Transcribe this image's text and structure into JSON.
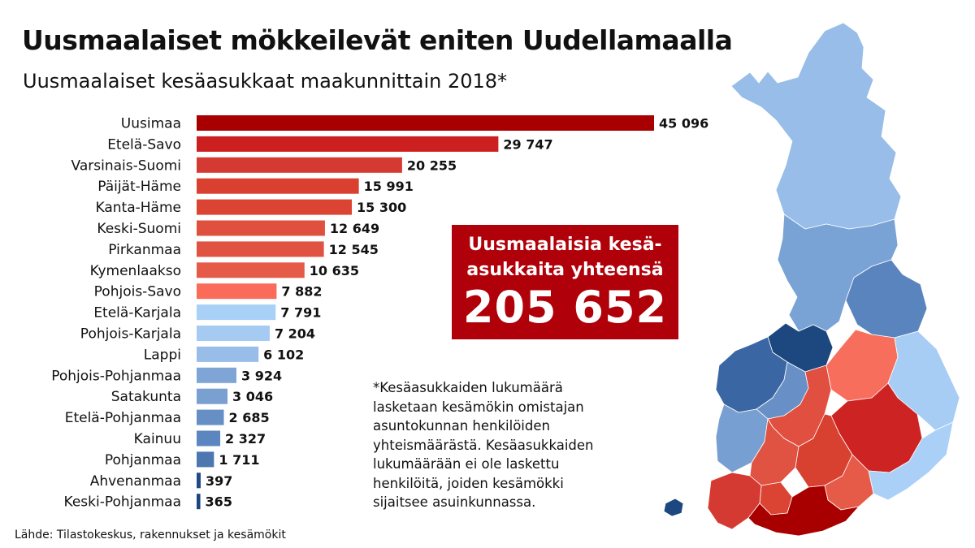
{
  "header": {
    "title": "Uusmaalaiset mökkeilevät eniten Uudellamaalla",
    "subtitle": "Uusmaalaiset kesäasukkaat maakunnittain 2018*"
  },
  "total_box": {
    "label_line1": "Uusmaalaisia kesä-",
    "label_line2": "asukkaita yhteensä",
    "value": "205 652"
  },
  "footnote": {
    "lines": [
      "*Kesäasukkaiden lukumäärä",
      "lasketaan kesämökin omistajan",
      "asuntokunnan henkilöiden",
      "yhteismäärästä. Kesäasukkaiden",
      "lukumäärään ei ole laskettu",
      "henkilöitä, joiden kesämökki",
      "sijaitsee asuinkunnassa."
    ]
  },
  "source": "Lähde: Tilastokeskus, rakennukset ja kesämökit",
  "chart_data": {
    "type": "bar",
    "orientation": "horizontal",
    "title": "Uusmaalaiset mökkeilevät eniten Uudellamaalla",
    "subtitle": "Uusmaalaiset kesäasukkaat maakunnittain 2018*",
    "xlabel": "",
    "ylabel": "",
    "xlim": [
      0,
      45096
    ],
    "grid": false,
    "legend": "none",
    "categories": [
      "Uusimaa",
      "Etelä-Savo",
      "Varsinais-Suomi",
      "Päijät-Häme",
      "Kanta-Häme",
      "Keski-Suomi",
      "Pirkanmaa",
      "Kymenlaakso",
      "Pohjois-Savo",
      "Etelä-Karjala",
      "Pohjois-Karjala",
      "Lappi",
      "Pohjois-Pohjanmaa",
      "Satakunta",
      "Etelä-Pohjanmaa",
      "Kainuu",
      "Pohjanmaa",
      "Ahvenanmaa",
      "Keski-Pohjanmaa"
    ],
    "values": [
      45096,
      29747,
      20255,
      15991,
      15300,
      12649,
      12545,
      10635,
      7882,
      7791,
      7204,
      6102,
      3924,
      3046,
      2685,
      2327,
      1711,
      397,
      365
    ],
    "value_labels": [
      "45 096",
      "29 747",
      "20 255",
      "15 991",
      "15 300",
      "12 649",
      "12 545",
      "10 635",
      "7 882",
      "7 791",
      "7 204",
      "6 102",
      "3 924",
      "3 046",
      "2 685",
      "2 327",
      "1 711",
      "397",
      "365"
    ],
    "colors": [
      "#a80000",
      "#cc1f1f",
      "#d53a32",
      "#d9402f",
      "#db4433",
      "#e0503f",
      "#e05242",
      "#e65a48",
      "#fa6b5a",
      "#a9d0f7",
      "#a5cbf2",
      "#98bde9",
      "#7ea5d6",
      "#7aa0d2",
      "#668fc6",
      "#5c86bf",
      "#4c77b0",
      "#1f4a85",
      "#1a4580"
    ]
  },
  "map_colors": {
    "lappi": "#97bde8",
    "pohjois_pohjanmaa": "#7aa3d5",
    "kainuu": "#5a84bd",
    "keski_pohjanmaa": "#1c477f",
    "pohjanmaa": "#3a66a3",
    "etela_pohjanmaa": "#6890c6",
    "satakunta": "#789fd1",
    "ahvenanmaa": "#1c477f",
    "pohjois_savo": "#f86e5d",
    "pohjois_karjala": "#a7cdf5",
    "etela_karjala": "#abd0f8",
    "keski_suomi": "#e04f3f",
    "pirkanmaa": "#e05242",
    "etela_savo": "#cd2323",
    "kanta_hame": "#db4433",
    "paijat_hame": "#d8402f",
    "kymenlaakso": "#e65a48",
    "varsinais_suomi": "#d53a32",
    "uusimaa": "#a80000"
  }
}
